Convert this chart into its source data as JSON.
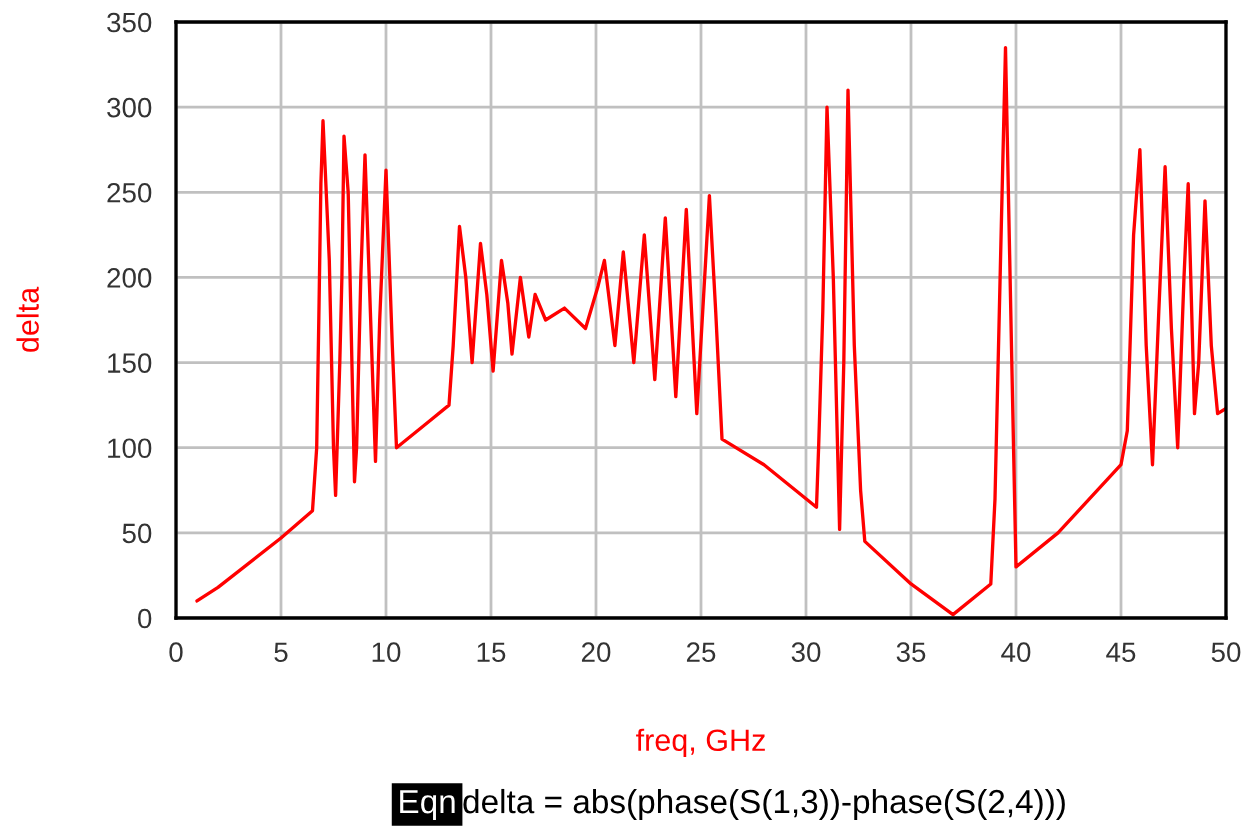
{
  "chart_data": {
    "type": "line",
    "xlabel": "freq, GHz",
    "ylabel": "delta",
    "xlim": [
      0,
      50
    ],
    "xticks": [
      0,
      5,
      10,
      15,
      20,
      25,
      30,
      35,
      40,
      45,
      50
    ],
    "ylim": [
      0,
      350
    ],
    "yticks": [
      0,
      50,
      100,
      150,
      200,
      250,
      300,
      350
    ],
    "grid": true,
    "legend": false,
    "marker": "none",
    "line_style": "solid",
    "annotations": [
      "Eqn",
      "delta = abs(phase(S(1,3))-phase(S(2,4)))"
    ],
    "series": [
      {
        "color": "#ff0000",
        "x": [
          1,
          2,
          5,
          6.5,
          6.7,
          6.8,
          6.9,
          7.0,
          7.1,
          7.3,
          7.5,
          7.6,
          7.8,
          7.9,
          8.0,
          8.2,
          8.5,
          8.6,
          8.8,
          9.0,
          9.2,
          9.5,
          9.7,
          10.0,
          10.3,
          10.5,
          11,
          12,
          13,
          13.2,
          13.5,
          13.8,
          14.1,
          14.5,
          14.8,
          15.1,
          15.5,
          15.8,
          16.0,
          16.4,
          16.8,
          17.1,
          17.6,
          18.5,
          19.5,
          20.1,
          20.4,
          20.9,
          21.3,
          21.8,
          22.3,
          22.8,
          23.3,
          23.8,
          24.3,
          24.8,
          25.4,
          25.7,
          26,
          28,
          30,
          30.5,
          30.6,
          30.8,
          31.0,
          31.3,
          31.6,
          31.8,
          32.0,
          32.3,
          32.6,
          32.8,
          35,
          37,
          38.8,
          39.0,
          39.3,
          39.5,
          39.8,
          40.0,
          42,
          45,
          45.3,
          45.6,
          45.9,
          46.2,
          46.5,
          46.8,
          47.1,
          47.4,
          47.7,
          48.0,
          48.2,
          48.5,
          48.7,
          49.0,
          49.3,
          49.6,
          50
        ],
        "values": [
          10,
          18,
          47,
          63,
          100,
          175,
          255,
          292,
          265,
          210,
          100,
          72,
          150,
          200,
          283,
          250,
          80,
          100,
          200,
          272,
          200,
          92,
          175,
          263,
          160,
          100,
          105,
          115,
          125,
          160,
          230,
          200,
          150,
          220,
          190,
          145,
          210,
          185,
          155,
          200,
          165,
          190,
          175,
          182,
          170,
          195,
          210,
          160,
          215,
          150,
          225,
          140,
          235,
          130,
          240,
          120,
          248,
          180,
          105,
          90,
          70,
          65,
          100,
          180,
          300,
          200,
          52,
          150,
          310,
          160,
          75,
          45,
          20,
          2,
          20,
          70,
          230,
          335,
          150,
          30,
          50,
          90,
          110,
          225,
          275,
          160,
          90,
          180,
          265,
          170,
          100,
          200,
          255,
          120,
          150,
          245,
          160,
          120,
          123
        ]
      }
    ]
  }
}
